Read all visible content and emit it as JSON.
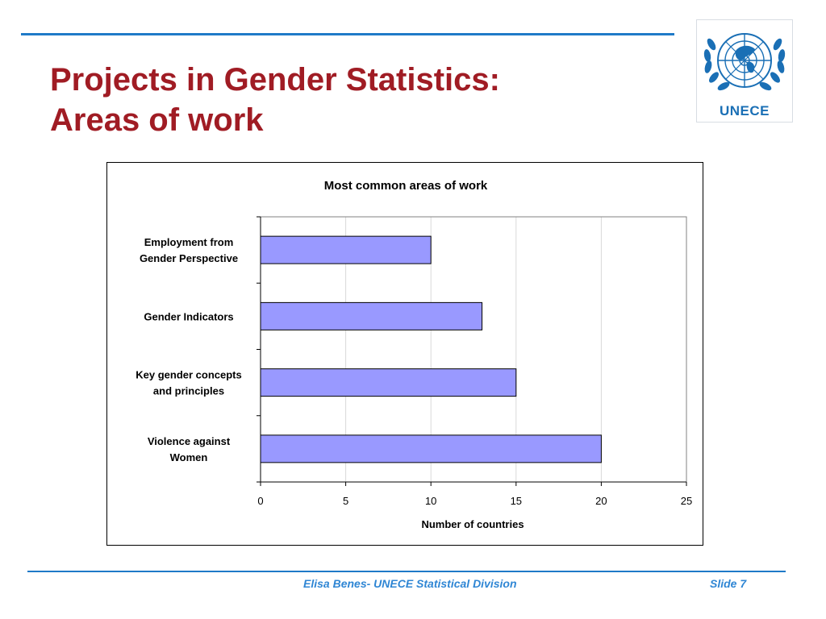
{
  "slide": {
    "title_line1": "Projects in Gender Statistics:",
    "title_line2": "Areas of work",
    "logo_text": "UNECE",
    "footer": "Elisa Benes- UNECE Statistical Division",
    "slide_number": "Slide 7"
  },
  "colors": {
    "title": "#a01c24",
    "accent_line": "#1f7ac8",
    "footer_text": "#2f86d4",
    "bar_fill": "#9999ff",
    "bar_stroke": "#000000",
    "logo": "#1a6fb5"
  },
  "chart_data": {
    "type": "bar",
    "orientation": "horizontal",
    "title": "Most common areas of work",
    "xlabel": "Number of countries",
    "ylabel": "",
    "categories": [
      [
        "Employment from",
        "Gender Perspective"
      ],
      [
        "Gender Indicators"
      ],
      [
        "Key gender concepts",
        "and principles"
      ],
      [
        "Violence against",
        "Women"
      ]
    ],
    "values": [
      10,
      13,
      15,
      20
    ],
    "xlim": [
      0,
      25
    ],
    "xticks": [
      0,
      5,
      10,
      15,
      20,
      25
    ],
    "grid": "vertical",
    "legend": "none"
  }
}
